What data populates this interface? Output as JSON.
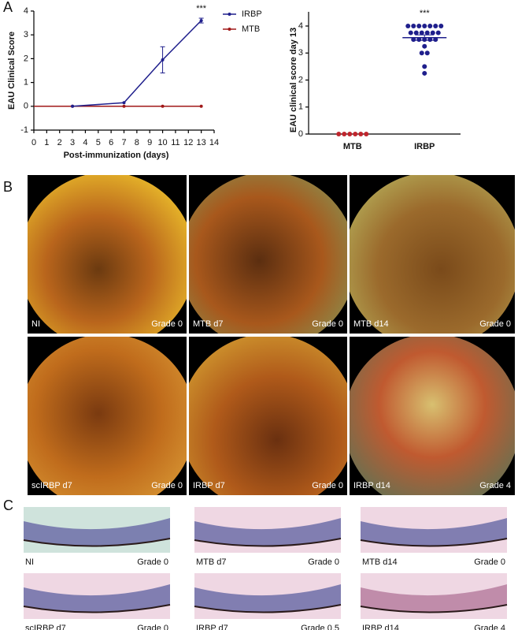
{
  "panel_labels": [
    "A",
    "B",
    "C"
  ],
  "chart_data": [
    {
      "type": "line",
      "x_label": "Post-immunization (days)",
      "y_label": "EAU Clinical Score",
      "xlim": [
        0,
        14
      ],
      "xticks": [
        0,
        1,
        2,
        3,
        4,
        5,
        6,
        7,
        8,
        9,
        10,
        11,
        12,
        13,
        14
      ],
      "ylim": [
        -1,
        4
      ],
      "yticks": [
        -1,
        0,
        1,
        2,
        3,
        4
      ],
      "annotation": "***",
      "series": [
        {
          "name": "IRBP",
          "color": "#1f1f8c",
          "x": [
            3,
            7,
            10,
            13
          ],
          "values": [
            0,
            0.15,
            1.95,
            3.6
          ],
          "errors": [
            0,
            0,
            0.55,
            0.1
          ]
        },
        {
          "name": "MTB",
          "color": "#a01818",
          "x": [
            0,
            3,
            7,
            10,
            13
          ],
          "values": [
            0,
            0,
            0,
            0,
            0
          ],
          "errors": [
            0,
            0,
            0,
            0,
            0
          ]
        }
      ]
    },
    {
      "type": "dot",
      "y_label": "EAU clinical score day 13",
      "ylim": [
        0,
        4
      ],
      "yticks": [
        0,
        1,
        2,
        3,
        4
      ],
      "annotation": "***",
      "categories": [
        "MTB",
        "IRBP"
      ],
      "groups": [
        {
          "color": "#c0262d",
          "values": [
            0,
            0,
            0,
            0,
            0,
            0
          ]
        },
        {
          "color": "#1f1f8c",
          "values": [
            4,
            4,
            4,
            4,
            4,
            4,
            4,
            3.75,
            3.75,
            3.75,
            3.75,
            3.75,
            3.75,
            3.5,
            3.5,
            3.5,
            3.5,
            3.5,
            3.25,
            3,
            3,
            2.5,
            2.25
          ],
          "mean": 3.57,
          "sem": 0.1
        }
      ]
    }
  ],
  "fundus_images": [
    {
      "label": "NI",
      "grade": "Grade 0"
    },
    {
      "label": "MTB d7",
      "grade": "Grade 0"
    },
    {
      "label": "MTB d14",
      "grade": "Grade 0"
    },
    {
      "label": "scIRBP d7",
      "grade": "Grade 0"
    },
    {
      "label": "IRBP d7",
      "grade": "Grade 0"
    },
    {
      "label": "IRBP d14",
      "grade": "Grade 4"
    }
  ],
  "histology_images": [
    {
      "label": "NI",
      "grade": "Grade 0"
    },
    {
      "label": "MTB d7",
      "grade": "Grade 0"
    },
    {
      "label": "MTB d14",
      "grade": "Grade 0"
    },
    {
      "label": "scIRBP d7",
      "grade": "Grade 0"
    },
    {
      "label": "IRBP d7",
      "grade": "Grade 0.5"
    },
    {
      "label": "IRBP d14",
      "grade": "Grade 4"
    }
  ]
}
